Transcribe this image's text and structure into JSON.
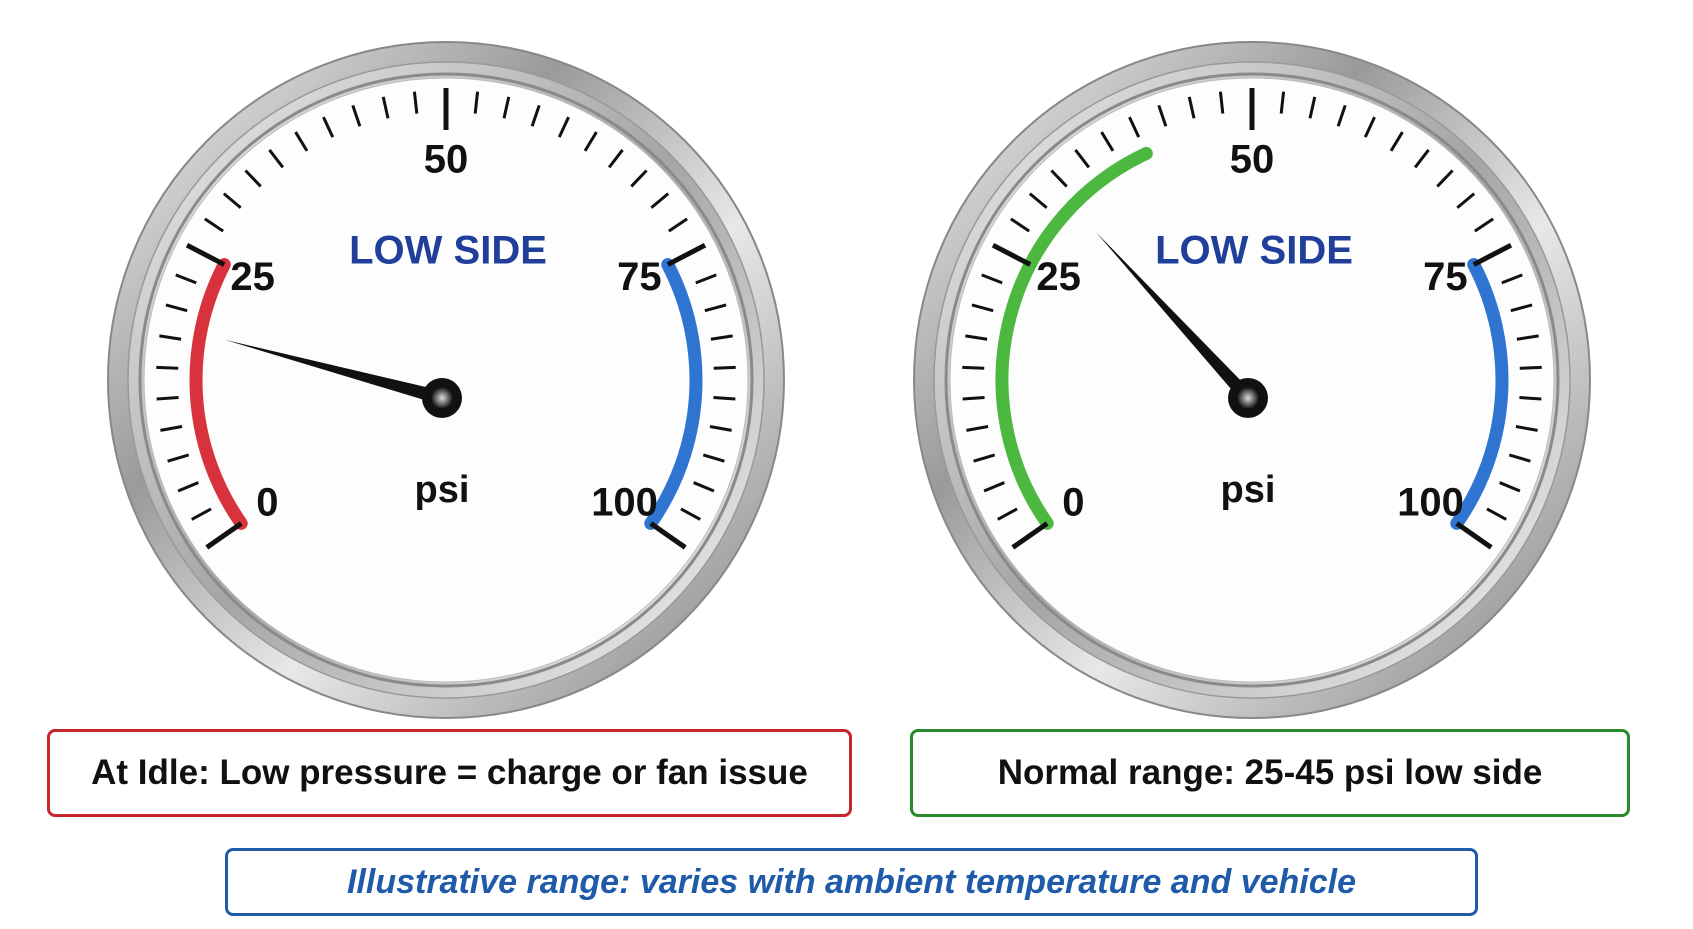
{
  "chart_data": [
    {
      "type": "gauge",
      "title": "LOW SIDE",
      "unit": "psi",
      "ylim": [
        0,
        100
      ],
      "yticks": [
        0,
        25,
        50,
        75,
        100
      ],
      "minor_tick_interval": 2.5,
      "value": 20,
      "bands": [
        {
          "from": 0,
          "to": 25,
          "color": "#d8323c"
        },
        {
          "from": 75,
          "to": 100,
          "color": "#2e74d0"
        }
      ],
      "caption": "At Idle: Low pressure = charge or fan issue",
      "caption_color": "#c8262d"
    },
    {
      "type": "gauge",
      "title": "LOW SIDE",
      "unit": "psi",
      "ylim": [
        0,
        100
      ],
      "yticks": [
        0,
        25,
        50,
        75,
        100
      ],
      "minor_tick_interval": 2.5,
      "value": 33,
      "bands": [
        {
          "from": 0,
          "to": 40,
          "color": "#4cb840"
        },
        {
          "from": 75,
          "to": 100,
          "color": "#2e74d0"
        }
      ],
      "caption": "Normal range: 25-45 psi low side",
      "caption_color": "#2a8a2a"
    }
  ],
  "footnote": "Illustrative range: varies with ambient temperature and vehicle",
  "footnote_color": "#1f5ba8"
}
